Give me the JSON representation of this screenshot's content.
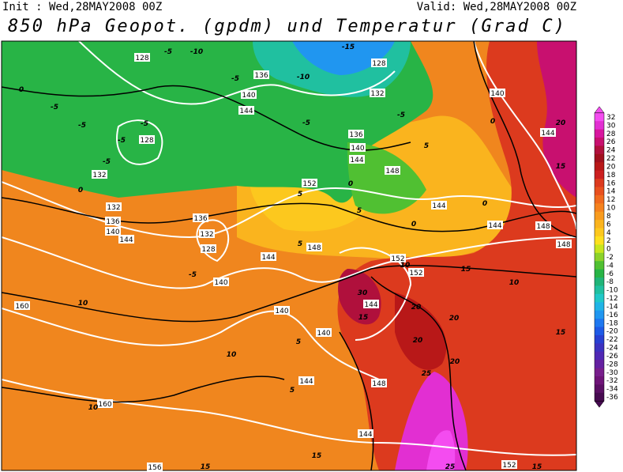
{
  "header": {
    "init": "Init : Wed,28MAY2008 00Z",
    "valid": "Valid: Wed,28MAY2008 00Z",
    "title": "850 hPa Geopot. (gpdm) und Temperatur (Grad C)"
  },
  "legend": {
    "ticks": [
      32,
      30,
      28,
      26,
      24,
      22,
      20,
      18,
      16,
      14,
      12,
      10,
      8,
      6,
      4,
      2,
      0,
      -2,
      -4,
      -6,
      -8,
      -10,
      -12,
      -14,
      -16,
      -18,
      -20,
      -22,
      -24,
      -26,
      -28,
      -30,
      -32,
      -34,
      -36
    ],
    "colors": [
      "#f44cf0",
      "#e22fd2",
      "#d8179f",
      "#c8106f",
      "#b0103c",
      "#a0101e",
      "#b81818",
      "#cc2020",
      "#dc3a1e",
      "#e8501e",
      "#f06a1e",
      "#f5821e",
      "#f89b1e",
      "#fab41e",
      "#fcc81e",
      "#fde01e",
      "#c8e61e",
      "#8cd22a",
      "#50c032",
      "#28b446",
      "#20b478",
      "#20c0a0",
      "#20c8c8",
      "#20b4e6",
      "#2096f0",
      "#1e78f0",
      "#1e5ae6",
      "#2840d2",
      "#3c32c0",
      "#5028b4",
      "#6420a0",
      "#781e8c",
      "#6e1478",
      "#5a0f64",
      "#460a50"
    ]
  },
  "map": {
    "geopotential_labels": [
      "128",
      "136",
      "132",
      "140",
      "144",
      "128",
      "132",
      "132",
      "136",
      "140",
      "144",
      "136",
      "132",
      "128",
      "140",
      "144",
      "148",
      "152",
      "140",
      "140",
      "144",
      "152",
      "152",
      "148",
      "144",
      "144",
      "148",
      "148",
      "140",
      "144",
      "148",
      "144",
      "144",
      "160",
      "160",
      "156",
      "152",
      "136",
      "140",
      "144",
      "128"
    ],
    "temperature_labels": [
      "-5",
      "-10",
      "-15",
      "-5",
      "-10",
      "0",
      "-5",
      "-5",
      "-5",
      "-5",
      "-5",
      "-5",
      "-5",
      "0",
      "20",
      "15",
      "5",
      "0",
      "5",
      "0",
      "5",
      "0",
      "0",
      "15",
      "10",
      "10",
      "20",
      "20",
      "20",
      "20",
      "15",
      "30",
      "15",
      "25",
      "10",
      "10",
      "5",
      "5",
      "-5",
      "5",
      "10",
      "15",
      "15",
      "15",
      "25"
    ]
  }
}
